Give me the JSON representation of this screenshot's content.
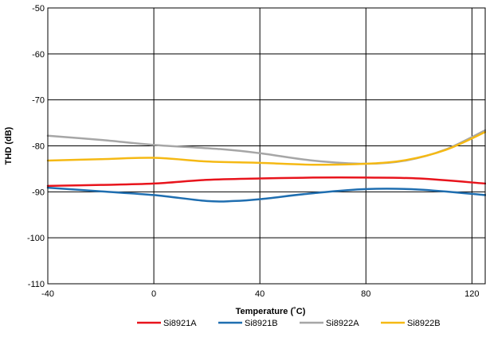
{
  "chart_data": {
    "type": "line",
    "xlabel": "Temperature (˚C)",
    "ylabel": "THD (dB)",
    "xlim": [
      -40,
      125
    ],
    "ylim": [
      -110,
      -50
    ],
    "x_ticks": [
      -40,
      0,
      40,
      80,
      120
    ],
    "y_ticks": [
      -110,
      -100,
      -90,
      -80,
      -70,
      -60,
      -50
    ],
    "grid": "major gridlines on both axes",
    "legend_position": "bottom",
    "series": [
      {
        "name": "Si8921A",
        "color": "#e8141c",
        "points": [
          [
            -40,
            -88.7
          ],
          [
            -20,
            -88.5
          ],
          [
            0,
            -88.2
          ],
          [
            20,
            -87.4
          ],
          [
            40,
            -87.1
          ],
          [
            60,
            -86.9
          ],
          [
            80,
            -86.9
          ],
          [
            100,
            -87.1
          ],
          [
            125,
            -88.2
          ]
        ]
      },
      {
        "name": "Si8921B",
        "color": "#1f6eb0",
        "points": [
          [
            -40,
            -89.1
          ],
          [
            -20,
            -89.9
          ],
          [
            0,
            -90.7
          ],
          [
            20,
            -92.0
          ],
          [
            30,
            -92.0
          ],
          [
            40,
            -91.6
          ],
          [
            60,
            -90.3
          ],
          [
            80,
            -89.4
          ],
          [
            100,
            -89.5
          ],
          [
            125,
            -90.7
          ]
        ]
      },
      {
        "name": "Si8922A",
        "color": "#a6a6a6",
        "points": [
          [
            -40,
            -77.8
          ],
          [
            -20,
            -78.7
          ],
          [
            0,
            -79.8
          ],
          [
            25,
            -80.7
          ],
          [
            40,
            -81.6
          ],
          [
            60,
            -83.2
          ],
          [
            80,
            -83.9
          ],
          [
            95,
            -83.2
          ],
          [
            110,
            -80.8
          ],
          [
            125,
            -76.6
          ]
        ]
      },
      {
        "name": "Si8922B",
        "color": "#f5b914",
        "points": [
          [
            -40,
            -83.2
          ],
          [
            -20,
            -82.9
          ],
          [
            0,
            -82.6
          ],
          [
            20,
            -83.4
          ],
          [
            40,
            -83.7
          ],
          [
            60,
            -84.1
          ],
          [
            80,
            -83.9
          ],
          [
            95,
            -83.1
          ],
          [
            110,
            -80.9
          ],
          [
            125,
            -77.0
          ]
        ]
      }
    ]
  }
}
